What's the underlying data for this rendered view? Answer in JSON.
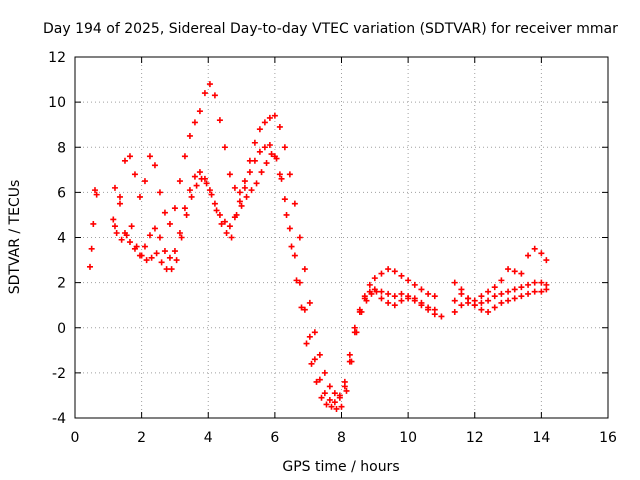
{
  "chart_data": {
    "type": "scatter",
    "title": "Day 194 of 2025, Sidereal Day-to-day VTEC variation (SDTVAR) for receiver mmar",
    "xlabel": "GPS time / hours",
    "ylabel": "SDTVAR / TECUs",
    "xlim": [
      0,
      16
    ],
    "ylim": [
      -4,
      12
    ],
    "xticks": [
      "0",
      "2",
      "4",
      "6",
      "8",
      "10",
      "12",
      "14",
      "16"
    ],
    "yticks": [
      "-4",
      "-2",
      "0",
      "2",
      "4",
      "6",
      "8",
      "10",
      "12"
    ],
    "grid": true,
    "marker": "+",
    "color": "#ff0000",
    "series": [
      {
        "x": [
          0.45,
          0.5,
          0.55,
          0.6,
          0.65,
          1.15,
          1.25,
          1.4,
          1.55,
          1.7,
          1.85,
          2.0,
          2.15,
          2.3,
          2.45,
          2.6,
          2.75,
          2.9,
          3.05,
          3.2,
          3.35,
          3.5,
          3.65,
          3.8,
          3.95,
          4.1,
          4.25,
          4.4,
          4.55,
          4.7,
          4.85,
          5.0,
          5.15,
          5.3,
          5.45,
          5.6,
          5.75,
          5.9,
          6.05,
          6.2,
          6.35,
          6.5,
          6.65,
          6.8,
          6.95,
          7.1,
          7.25,
          7.4,
          7.55,
          7.7,
          7.85,
          8.0,
          8.15,
          8.3,
          8.45,
          8.6,
          8.75,
          8.9,
          9.05,
          9.2,
          9.4,
          9.6,
          9.8,
          10.0,
          10.2,
          10.4,
          10.6,
          10.8,
          11.0,
          11.4,
          11.6,
          11.8,
          12.0,
          12.2,
          12.4,
          12.6,
          12.8,
          13.0,
          13.2,
          13.4,
          13.6,
          13.8,
          14.0,
          14.15
        ],
        "y": [
          2.7,
          3.5,
          4.6,
          6.1,
          5.9,
          4.8,
          4.2,
          3.9,
          4.1,
          4.5,
          3.6,
          3.2,
          3.0,
          3.1,
          3.3,
          2.9,
          2.6,
          2.6,
          3.0,
          4.0,
          5.0,
          5.8,
          6.3,
          6.6,
          6.4,
          5.9,
          5.2,
          4.6,
          4.2,
          4.0,
          5.0,
          5.4,
          5.8,
          6.1,
          6.4,
          6.9,
          7.3,
          7.7,
          7.5,
          6.6,
          5.0,
          3.6,
          2.1,
          0.9,
          -0.7,
          -1.6,
          -2.4,
          -3.1,
          -3.4,
          -3.5,
          -3.6,
          -3.5,
          -2.8,
          -1.5,
          -0.2,
          0.7,
          1.2,
          1.5,
          1.6,
          1.3,
          1.1,
          1.0,
          1.2,
          1.3,
          1.2,
          1.0,
          0.8,
          0.6,
          0.5,
          0.7,
          1.0,
          1.1,
          1.0,
          0.8,
          0.7,
          0.9,
          1.1,
          1.2,
          1.3,
          1.4,
          1.5,
          1.6,
          1.6,
          1.7
        ]
      },
      {
        "x": [
          1.2,
          1.35,
          1.5,
          1.65,
          1.8,
          1.95,
          2.1,
          2.25,
          2.4,
          2.55,
          2.7,
          2.85,
          3.0,
          3.15,
          3.3,
          3.45,
          3.6,
          3.75,
          3.9,
          4.05,
          4.2,
          4.35,
          4.5,
          4.65,
          4.8,
          4.95,
          5.1,
          5.25,
          5.4,
          5.55,
          5.7,
          5.85,
          6.0,
          6.15,
          6.3,
          6.45,
          6.6,
          6.75,
          6.9,
          7.05,
          7.2,
          7.35,
          7.5,
          7.65,
          7.8,
          7.95,
          8.1,
          8.25,
          8.4,
          8.55,
          8.7,
          8.85,
          9.0,
          9.2,
          9.4,
          9.6,
          9.8,
          10.0,
          10.2,
          10.4,
          10.6,
          10.8,
          11.4,
          11.6,
          11.8,
          12.0,
          12.2,
          12.4,
          12.6,
          12.8,
          13.0,
          13.2,
          13.4,
          13.6,
          13.8,
          14.0,
          14.15
        ],
        "y": [
          4.5,
          5.5,
          4.2,
          3.8,
          3.5,
          3.2,
          3.6,
          4.1,
          4.4,
          4.0,
          3.4,
          3.1,
          3.4,
          4.2,
          5.3,
          6.1,
          6.7,
          6.9,
          6.6,
          6.1,
          5.5,
          5.0,
          4.7,
          4.5,
          4.9,
          5.6,
          6.2,
          6.9,
          7.4,
          7.8,
          8.0,
          8.1,
          7.6,
          6.8,
          5.7,
          4.4,
          3.2,
          2.0,
          0.8,
          -0.4,
          -1.4,
          -2.3,
          -2.9,
          -3.2,
          -3.3,
          -3.1,
          -2.4,
          -1.2,
          0.0,
          0.8,
          1.3,
          1.6,
          1.7,
          1.6,
          1.5,
          1.4,
          1.5,
          1.4,
          1.3,
          1.1,
          0.9,
          0.8,
          1.2,
          1.5,
          1.3,
          1.0,
          1.1,
          1.2,
          1.4,
          1.5,
          1.6,
          1.7,
          1.8,
          1.9,
          2.0,
          2.0,
          1.9
        ]
      },
      {
        "x": [
          1.2,
          1.35,
          1.5,
          1.65,
          1.8,
          1.95,
          2.1,
          2.25,
          2.4,
          2.55,
          2.7,
          2.85,
          3.0,
          3.15,
          3.3,
          3.45,
          3.6,
          3.75,
          3.9,
          4.05,
          4.2,
          4.35,
          4.5,
          4.65,
          4.8,
          4.95,
          5.1,
          5.25,
          5.4,
          5.55,
          5.7,
          5.85,
          6.0,
          6.15,
          6.3,
          6.45,
          6.6,
          6.75,
          6.9,
          7.05,
          7.2,
          7.35,
          7.5,
          7.65,
          7.8,
          7.95,
          8.1,
          8.25,
          8.4,
          8.55,
          8.7,
          8.85,
          9.0,
          9.2,
          9.4,
          9.6,
          9.8,
          10.0,
          10.2,
          10.4,
          10.6,
          10.8,
          11.4,
          11.6,
          11.8,
          12.0,
          12.2,
          12.4,
          12.6,
          12.8,
          13.0,
          13.2,
          13.4,
          13.6,
          13.8,
          14.0,
          14.15
        ],
        "y": [
          6.2,
          5.8,
          7.4,
          7.6,
          6.8,
          5.8,
          6.5,
          7.6,
          7.2,
          6.0,
          5.1,
          4.6,
          5.3,
          6.5,
          7.6,
          8.5,
          9.1,
          9.6,
          10.4,
          10.8,
          10.3,
          9.2,
          8.0,
          6.8,
          6.2,
          6.0,
          6.5,
          7.4,
          8.2,
          8.8,
          9.1,
          9.3,
          9.4,
          8.9,
          8.0,
          6.8,
          5.5,
          4.0,
          2.6,
          1.1,
          -0.2,
          -1.2,
          -2.0,
          -2.6,
          -2.9,
          -3.0,
          -2.6,
          -1.5,
          -0.2,
          0.7,
          1.4,
          1.9,
          2.2,
          2.4,
          2.6,
          2.5,
          2.3,
          2.1,
          1.9,
          1.7,
          1.5,
          1.4,
          2.0,
          1.7,
          1.3,
          1.2,
          1.4,
          1.6,
          1.8,
          2.1,
          2.6,
          2.5,
          2.4,
          3.2,
          3.5,
          3.3,
          3.0
        ]
      }
    ]
  }
}
